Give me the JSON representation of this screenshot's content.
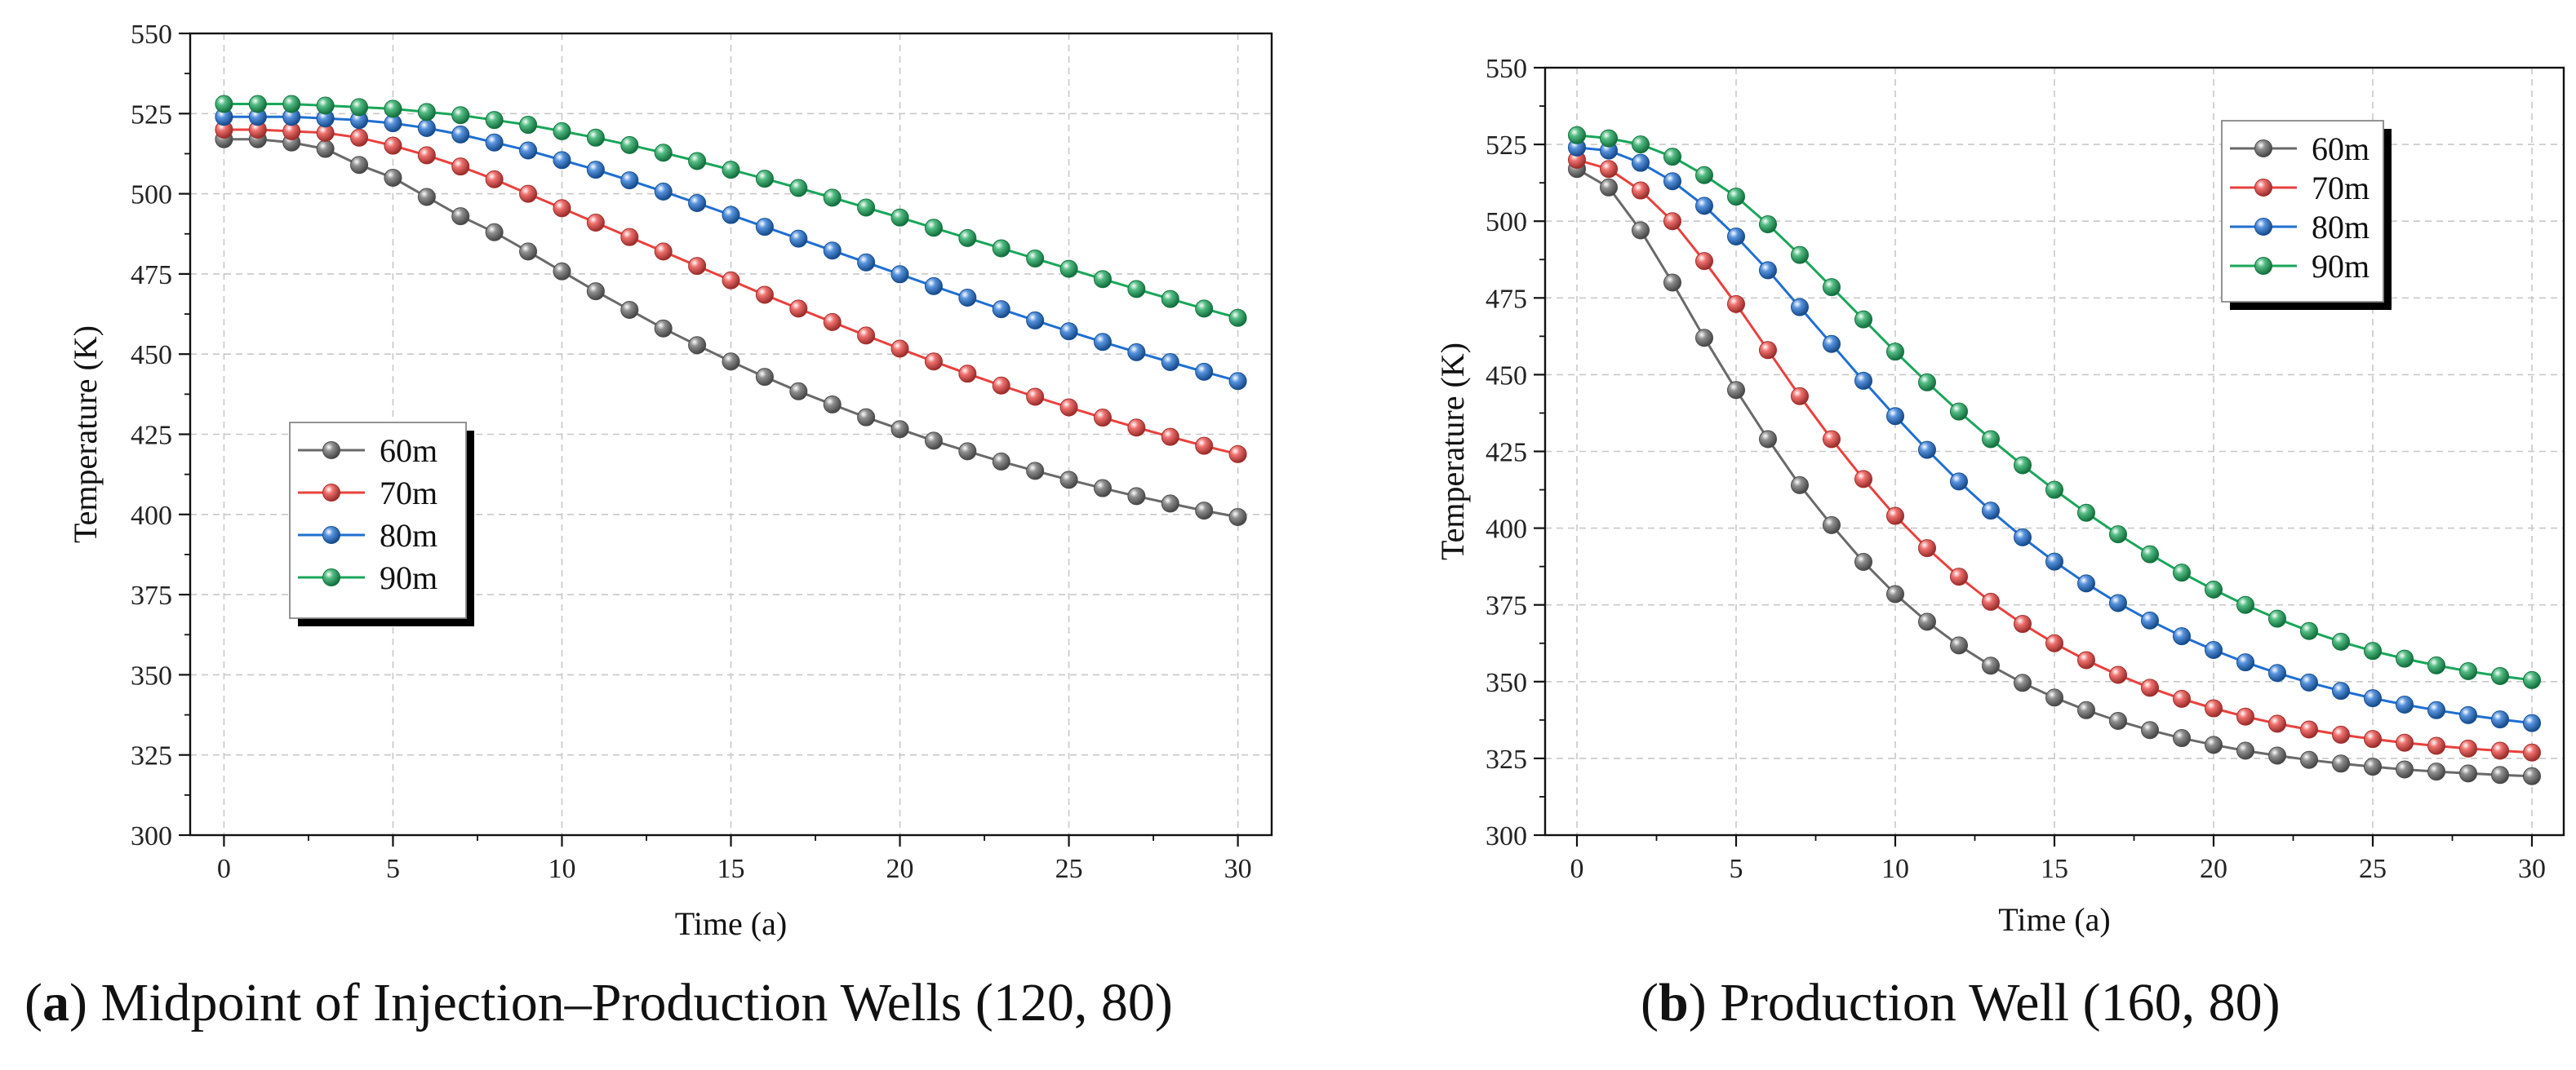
{
  "chart_data": [
    {
      "type": "line",
      "panel_id": "a",
      "caption_letter": "a",
      "caption_text": "Midpoint of Injection–Production Wells (120, 80)",
      "xlabel": "Time (a)",
      "ylabel": "Temperature (K)",
      "xlim": [
        -1,
        31
      ],
      "ylim": [
        300,
        550
      ],
      "xticks": [
        0,
        5,
        10,
        15,
        20,
        25,
        30
      ],
      "yticks": [
        300,
        325,
        350,
        375,
        400,
        425,
        450,
        475,
        500,
        525,
        550
      ],
      "grid": true,
      "legend_position": "center-left",
      "x": [
        0,
        1,
        2,
        3,
        4,
        5,
        6,
        7,
        8,
        9,
        10,
        11,
        12,
        13,
        14,
        15,
        16,
        17,
        18,
        19,
        20,
        21,
        22,
        23,
        24,
        25,
        26,
        27,
        28,
        29,
        30
      ],
      "series": [
        {
          "name": "60m",
          "color": "#696969",
          "values": [
            517,
            517,
            516,
            514,
            509,
            505,
            499,
            493,
            488,
            482,
            475.8,
            469.6,
            463.8,
            458,
            452.8,
            447.7,
            442.9,
            438.4,
            434.3,
            430.3,
            426.6,
            423,
            419.7,
            416.5,
            413.6,
            410.8,
            408.2,
            405.7,
            403.4,
            401.2,
            399.2
          ]
        },
        {
          "name": "70m",
          "color": "#e8413e",
          "values": [
            520,
            520,
            519.5,
            519,
            517.5,
            515,
            512,
            508.5,
            504.5,
            500,
            495.5,
            491,
            486.5,
            482,
            477.5,
            473,
            468.5,
            464.2,
            460,
            455.8,
            451.7,
            447.7,
            443.9,
            440.2,
            436.7,
            433.4,
            430.2,
            427.1,
            424.2,
            421.4,
            418.8
          ]
        },
        {
          "name": "80m",
          "color": "#1f6fd1",
          "values": [
            524,
            524,
            524,
            523.5,
            523,
            522,
            520.5,
            518.5,
            516,
            513.5,
            510.5,
            507.5,
            504.2,
            500.7,
            497.1,
            493.4,
            489.7,
            486,
            482.3,
            478.6,
            474.9,
            471.2,
            467.6,
            464,
            460.5,
            457.1,
            453.8,
            450.6,
            447.5,
            444.5,
            441.6
          ]
        },
        {
          "name": "90m",
          "color": "#19a65a",
          "values": [
            528,
            528,
            528,
            527.5,
            527,
            526.5,
            525.5,
            524.5,
            523,
            521.5,
            519.5,
            517.5,
            515.2,
            512.8,
            510.2,
            507.5,
            504.7,
            501.8,
            498.8,
            495.7,
            492.6,
            489.4,
            486.2,
            483,
            479.8,
            476.6,
            473.4,
            470.3,
            467.2,
            464.2,
            461.3
          ]
        }
      ]
    },
    {
      "type": "line",
      "panel_id": "b",
      "caption_letter": "b",
      "caption_text": "Production Well (160, 80)",
      "xlabel": "Time (a)",
      "ylabel": "Temperature (K)",
      "xlim": [
        -1,
        31
      ],
      "ylim": [
        300,
        550
      ],
      "xticks": [
        0,
        5,
        10,
        15,
        20,
        25,
        30
      ],
      "yticks": [
        300,
        325,
        350,
        375,
        400,
        425,
        450,
        475,
        500,
        525,
        550
      ],
      "grid": true,
      "legend_position": "top-center",
      "x": [
        0,
        1,
        2,
        3,
        4,
        5,
        6,
        7,
        8,
        9,
        10,
        11,
        12,
        13,
        14,
        15,
        16,
        17,
        18,
        19,
        20,
        21,
        22,
        23,
        24,
        25,
        26,
        27,
        28,
        29,
        30
      ],
      "series": [
        {
          "name": "60m",
          "color": "#696969",
          "values": [
            517,
            511,
            497,
            480,
            462,
            445,
            429,
            414,
            401,
            389,
            378.5,
            369.5,
            361.8,
            355.2,
            349.6,
            344.8,
            340.7,
            337.2,
            334.2,
            331.6,
            329.4,
            327.5,
            325.9,
            324.5,
            323.3,
            322.3,
            321.4,
            320.7,
            320.1,
            319.6,
            319.2
          ]
        },
        {
          "name": "70m",
          "color": "#e8413e",
          "values": [
            520,
            517,
            510,
            500,
            487,
            473,
            458,
            443,
            429,
            416,
            404,
            393.5,
            384.2,
            376,
            368.8,
            362.5,
            357,
            352.2,
            348,
            344.4,
            341.3,
            338.6,
            336.3,
            334.4,
            332.7,
            331.3,
            330.1,
            329.1,
            328.2,
            327.5,
            326.9
          ]
        },
        {
          "name": "80m",
          "color": "#1f6fd1",
          "values": [
            524,
            523,
            519,
            513,
            505,
            495,
            484,
            472,
            460,
            448,
            436.5,
            425.5,
            415.2,
            405.7,
            397,
            389.1,
            382,
            375.6,
            369.9,
            364.8,
            360.3,
            356.3,
            352.8,
            349.7,
            347,
            344.6,
            342.5,
            340.7,
            339.1,
            337.7,
            336.5
          ]
        },
        {
          "name": "90m",
          "color": "#19a65a",
          "values": [
            528,
            527,
            525,
            521,
            515,
            508,
            499,
            489,
            478.5,
            468,
            457.5,
            447.5,
            438,
            429,
            420.5,
            412.5,
            405,
            398,
            391.5,
            385.5,
            380,
            375,
            370.5,
            366.5,
            363,
            360,
            357.5,
            355.3,
            353.4,
            351.8,
            350.5
          ]
        }
      ]
    }
  ]
}
